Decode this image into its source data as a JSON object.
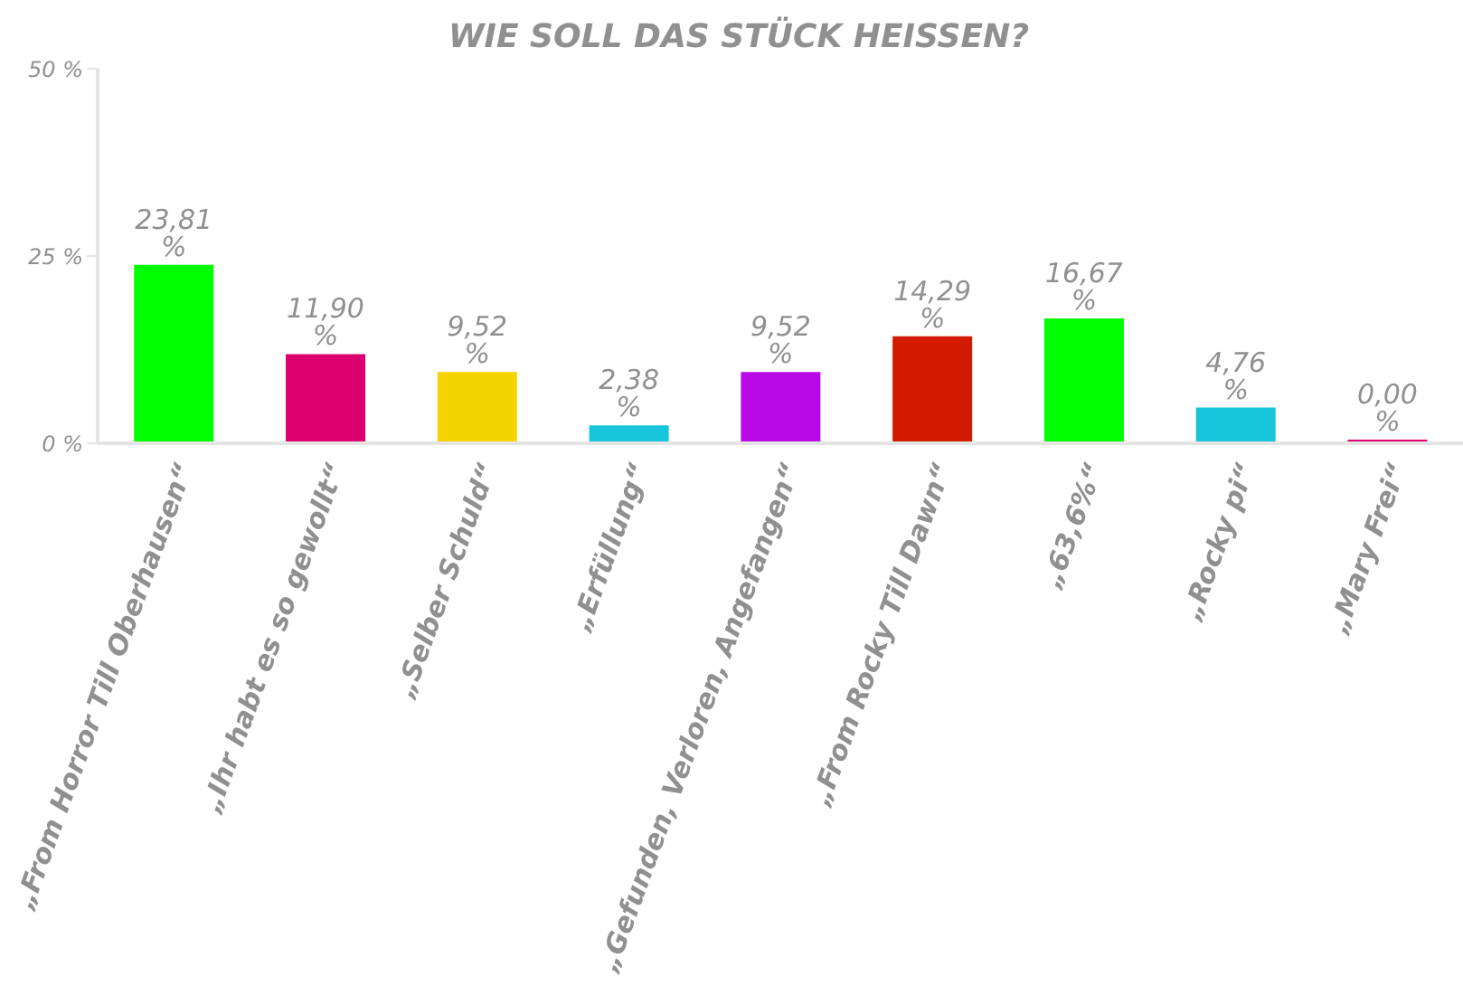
{
  "chart_data": {
    "type": "bar",
    "title": "WIE SOLL DAS STÜCK HEISSEN?",
    "categories": [
      "„From Horror Till Oberhausen“",
      "„Ihr habt es so gewollt“",
      "„Selber Schuld“",
      "„Erfüllung“",
      "„Gefunden, Verloren, Angefangen“",
      "„From Rocky Till Dawn“",
      "„63,6%“",
      "„Rocky pi“",
      "„Mary Frei“"
    ],
    "values": [
      23.81,
      11.9,
      9.52,
      2.38,
      9.52,
      14.29,
      16.67,
      4.76,
      0.0
    ],
    "colors": [
      "#00ff00",
      "#dc006e",
      "#f5d300",
      "#16c4dc",
      "#b90ae6",
      "#d21a00",
      "#00ff00",
      "#16c4dc",
      "#dc006e"
    ],
    "value_labels": [
      "23,81 %",
      "11,90 %",
      "9,52 %",
      "2,38 %",
      "9,52 %",
      "14,29 %",
      "16,67 %",
      "4,76 %",
      "0,00 %"
    ],
    "ylim": [
      0,
      50
    ],
    "yticks": [
      {
        "value": 0,
        "label": "0 %"
      },
      {
        "value": 25,
        "label": "25 %"
      },
      {
        "value": 50,
        "label": "50 %"
      }
    ],
    "grid": false,
    "legend": false
  }
}
